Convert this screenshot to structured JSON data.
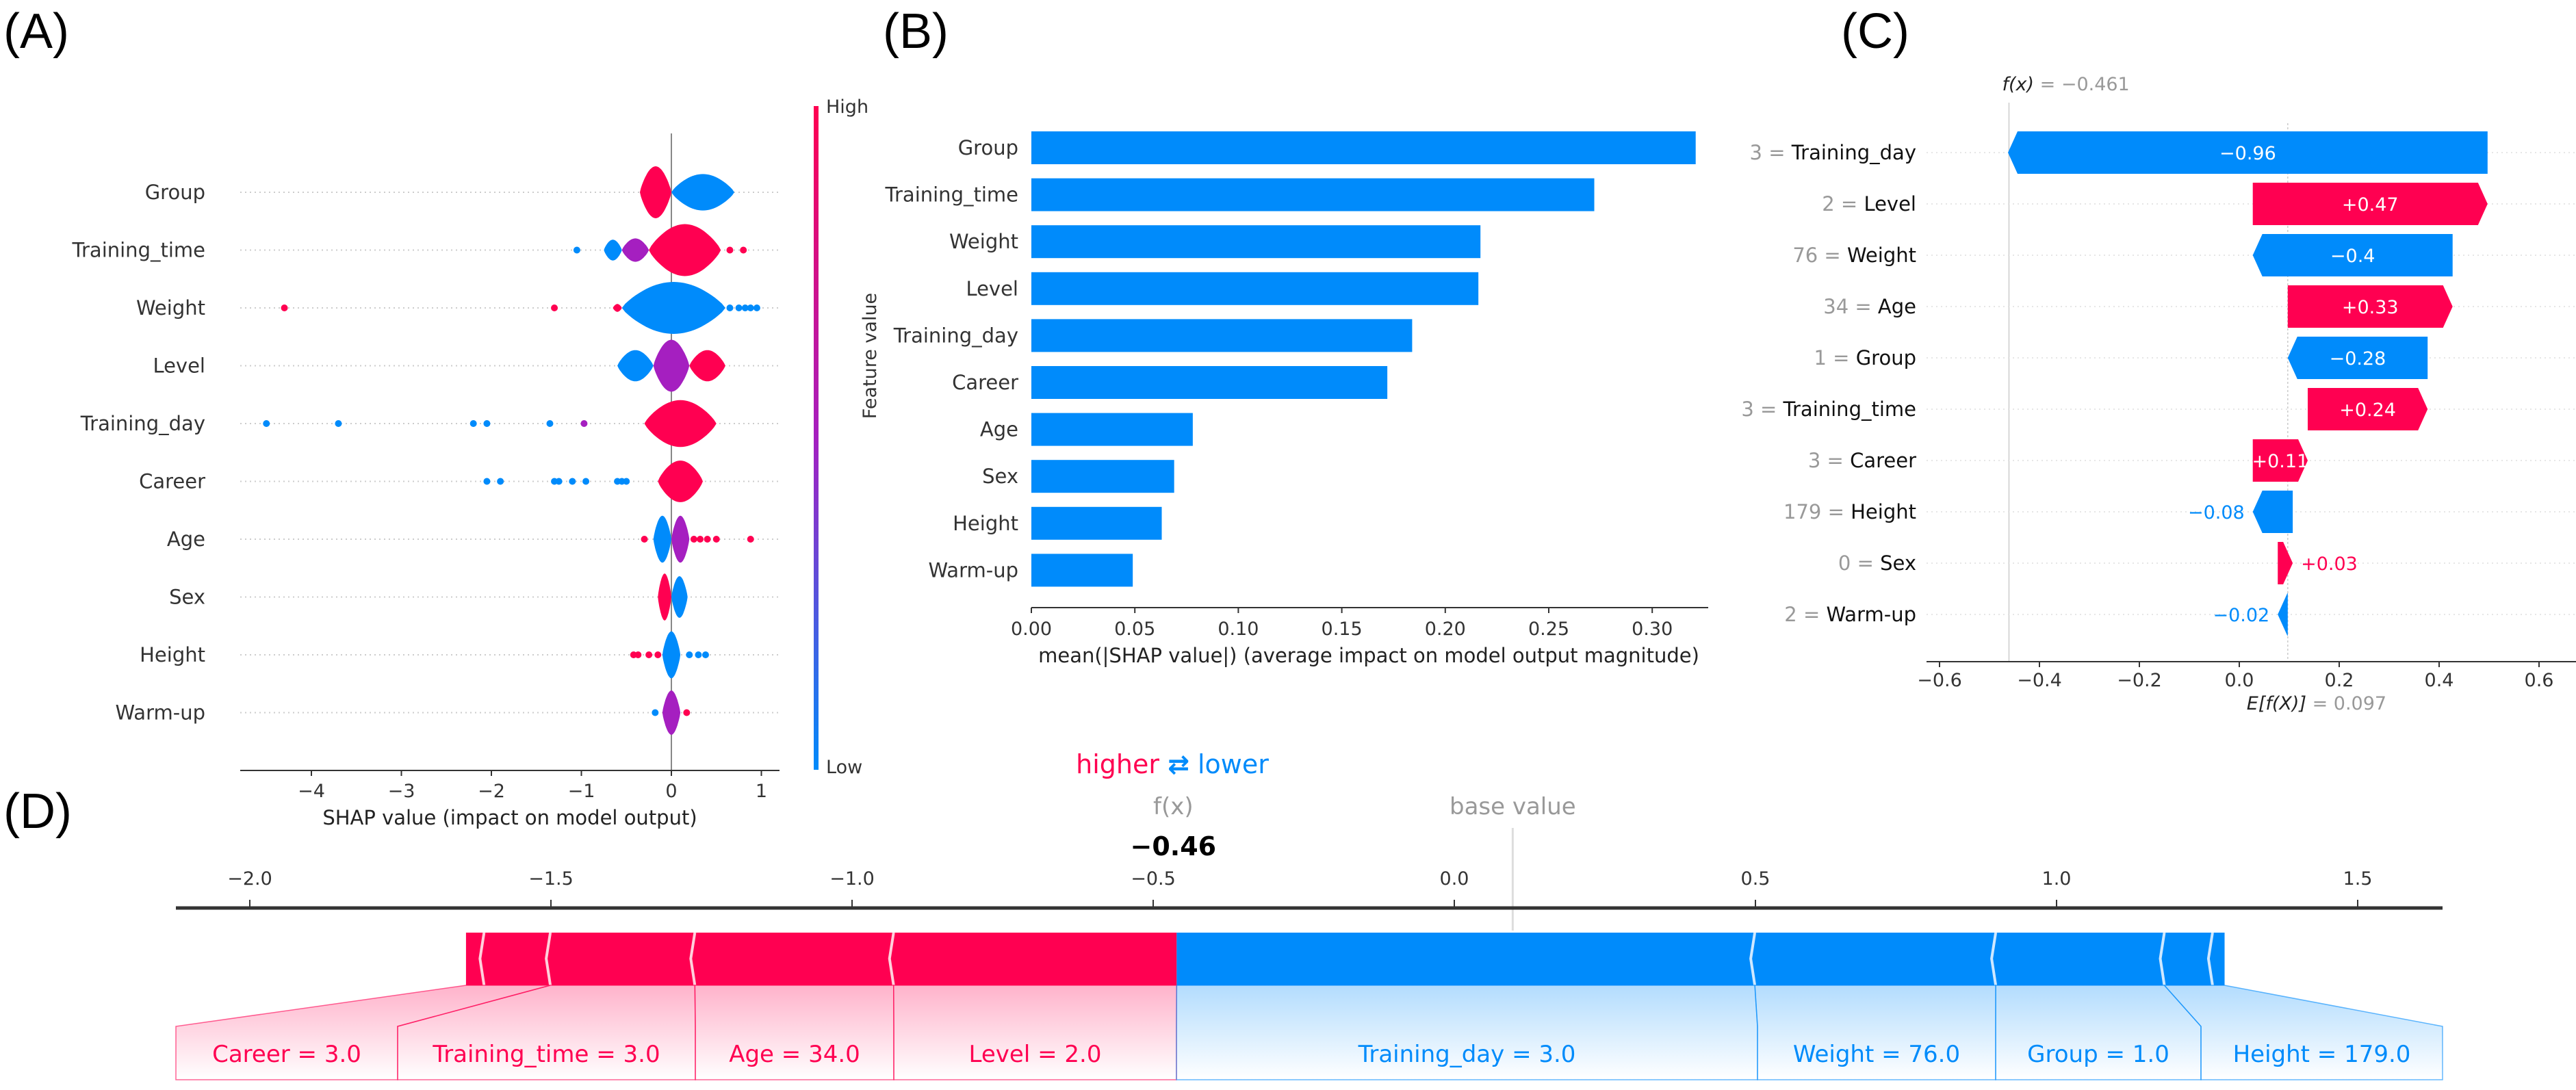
{
  "colors": {
    "positive": "#ff0051",
    "negative": "#008bfb",
    "mid": "#a51fc0",
    "gray": "#999999"
  },
  "panels": {
    "a": "(A)",
    "b": "(B)",
    "c": "(C)",
    "d": "(D)"
  },
  "chart_data": [
    {
      "panel": "(A)",
      "type": "scatter",
      "subtype": "violin summary",
      "xlabel": "SHAP value (impact on model output)",
      "xticks": [
        -4,
        -3,
        -2,
        -1,
        0,
        1
      ],
      "xtick_labels": [
        "−4",
        "−3",
        "−2",
        "−1",
        "0",
        "1"
      ],
      "xlim": [
        -4.8,
        1.2
      ],
      "colorbar": {
        "high": "High",
        "low": "Low"
      },
      "features": [
        {
          "name": "Group",
          "blobs": [
            {
              "from": -0.35,
              "to": 0,
              "peak": 1,
              "color": "positive"
            },
            {
              "from": 0,
              "to": 0.7,
              "peak": 0.7,
              "color": "negative"
            }
          ],
          "dots": []
        },
        {
          "name": "Training_time",
          "blobs": [
            {
              "from": -0.75,
              "to": -0.55,
              "peak": 0.4,
              "color": "negative"
            },
            {
              "from": -0.55,
              "to": -0.25,
              "peak": 0.45,
              "color": "mid"
            },
            {
              "from": -0.25,
              "to": 0.55,
              "peak": 1,
              "color": "positive"
            }
          ],
          "dots": [
            {
              "x": -1.05,
              "color": "negative"
            },
            {
              "x": 0.65,
              "color": "positive"
            },
            {
              "x": 0.8,
              "color": "positive"
            }
          ]
        },
        {
          "name": "Weight",
          "blobs": [
            {
              "from": -0.65,
              "to": -0.55,
              "peak": 0.15,
              "color": "positive"
            },
            {
              "from": -0.55,
              "to": 0.6,
              "peak": 1,
              "color": "negative"
            }
          ],
          "dots": [
            {
              "x": -4.3,
              "color": "positive"
            },
            {
              "x": -1.3,
              "color": "positive"
            },
            {
              "x": 0.65,
              "color": "negative"
            },
            {
              "x": 0.75,
              "color": "negative"
            },
            {
              "x": 0.82,
              "color": "negative"
            },
            {
              "x": 0.88,
              "color": "negative"
            },
            {
              "x": 0.95,
              "color": "negative"
            }
          ]
        },
        {
          "name": "Level",
          "blobs": [
            {
              "from": -0.6,
              "to": -0.2,
              "peak": 0.6,
              "color": "negative"
            },
            {
              "from": -0.2,
              "to": 0.2,
              "peak": 1,
              "color": "mid"
            },
            {
              "from": 0.2,
              "to": 0.6,
              "peak": 0.6,
              "color": "positive"
            }
          ],
          "dots": []
        },
        {
          "name": "Training_day",
          "blobs": [
            {
              "from": -0.3,
              "to": 0.5,
              "peak": 0.9,
              "color": "positive"
            }
          ],
          "dots": [
            {
              "x": -4.5,
              "color": "negative"
            },
            {
              "x": -3.7,
              "color": "negative"
            },
            {
              "x": -2.2,
              "color": "negative"
            },
            {
              "x": -2.05,
              "color": "negative"
            },
            {
              "x": -1.35,
              "color": "negative"
            },
            {
              "x": -0.97,
              "color": "mid"
            }
          ]
        },
        {
          "name": "Career",
          "blobs": [
            {
              "from": -0.15,
              "to": 0.35,
              "peak": 0.8,
              "color": "positive"
            }
          ],
          "dots": [
            {
              "x": -2.05,
              "color": "negative"
            },
            {
              "x": -1.9,
              "color": "negative"
            },
            {
              "x": -1.3,
              "color": "negative"
            },
            {
              "x": -1.25,
              "color": "negative"
            },
            {
              "x": -1.1,
              "color": "negative"
            },
            {
              "x": -0.95,
              "color": "negative"
            },
            {
              "x": -0.6,
              "color": "negative"
            },
            {
              "x": -0.55,
              "color": "negative"
            },
            {
              "x": -0.5,
              "color": "negative"
            }
          ]
        },
        {
          "name": "Age",
          "blobs": [
            {
              "from": -0.2,
              "to": 0,
              "peak": 0.9,
              "color": "negative"
            },
            {
              "from": 0,
              "to": 0.2,
              "peak": 0.9,
              "color": "mid"
            }
          ],
          "dots": [
            {
              "x": -0.3,
              "color": "positive"
            },
            {
              "x": 0.25,
              "color": "positive"
            },
            {
              "x": 0.32,
              "color": "positive"
            },
            {
              "x": 0.4,
              "color": "positive"
            },
            {
              "x": 0.5,
              "color": "positive"
            },
            {
              "x": 0.88,
              "color": "positive"
            }
          ]
        },
        {
          "name": "Sex",
          "blobs": [
            {
              "from": -0.15,
              "to": 0,
              "peak": 0.9,
              "color": "positive"
            },
            {
              "from": 0,
              "to": 0.18,
              "peak": 0.8,
              "color": "negative"
            }
          ],
          "dots": []
        },
        {
          "name": "Height",
          "blobs": [
            {
              "from": -0.1,
              "to": 0.1,
              "peak": 0.9,
              "color": "negative"
            }
          ],
          "dots": [
            {
              "x": -0.42,
              "color": "positive"
            },
            {
              "x": -0.37,
              "color": "positive"
            },
            {
              "x": -0.25,
              "color": "positive"
            },
            {
              "x": -0.15,
              "color": "positive"
            },
            {
              "x": 0.2,
              "color": "negative"
            },
            {
              "x": 0.3,
              "color": "negative"
            },
            {
              "x": 0.38,
              "color": "negative"
            }
          ]
        },
        {
          "name": "Warm-up",
          "blobs": [
            {
              "from": -0.1,
              "to": 0.1,
              "peak": 0.85,
              "color": "mid"
            }
          ],
          "dots": [
            {
              "x": -0.18,
              "color": "negative"
            },
            {
              "x": 0.17,
              "color": "positive"
            }
          ]
        }
      ]
    },
    {
      "panel": "(B)",
      "type": "bar",
      "categories": [
        "Group",
        "Training_time",
        "Weight",
        "Level",
        "Training_day",
        "Career",
        "Age",
        "Sex",
        "Height",
        "Warm-up"
      ],
      "values": [
        0.321,
        0.272,
        0.217,
        0.216,
        0.184,
        0.172,
        0.078,
        0.069,
        0.063,
        0.049
      ],
      "xlabel": "mean(|SHAP value|) (average impact on model output magnitude)",
      "ylabel": "Feature value",
      "xticks": [
        0,
        0.05,
        0.1,
        0.15,
        0.2,
        0.25,
        0.3
      ],
      "xtick_labels": [
        "0.00",
        "0.05",
        "0.10",
        "0.15",
        "0.20",
        "0.25",
        "0.30"
      ],
      "xlim": [
        0,
        0.327
      ]
    },
    {
      "panel": "(C)",
      "type": "bar",
      "subtype": "waterfall",
      "fx": -0.461,
      "fx_label": "f(x)",
      "fx_text": " = −0.461",
      "base": 0.097,
      "base_label": "E[f(X)]",
      "base_text": " = 0.097",
      "features": [
        {
          "value": "3",
          "name": "Training_day",
          "shap": -0.96,
          "text": "−0.96"
        },
        {
          "value": "2",
          "name": "Level",
          "shap": 0.47,
          "text": "+0.47"
        },
        {
          "value": "76",
          "name": "Weight",
          "shap": -0.4,
          "text": "−0.4"
        },
        {
          "value": "34",
          "name": "Age",
          "shap": 0.33,
          "text": "+0.33"
        },
        {
          "value": "1",
          "name": "Group",
          "shap": -0.28,
          "text": "−0.28"
        },
        {
          "value": "3",
          "name": "Training_time",
          "shap": 0.24,
          "text": "+0.24"
        },
        {
          "value": "3",
          "name": "Career",
          "shap": 0.11,
          "text": "+0.11"
        },
        {
          "value": "179",
          "name": "Height",
          "shap": -0.08,
          "text": "−0.08"
        },
        {
          "value": "0",
          "name": "Sex",
          "shap": 0.03,
          "text": "+0.03"
        },
        {
          "value": "2",
          "name": "Warm-up",
          "shap": -0.02,
          "text": "−0.02"
        }
      ],
      "xticks": [
        -0.6,
        -0.4,
        -0.2,
        0,
        0.2,
        0.4,
        0.6
      ],
      "xtick_labels": [
        "−0.6",
        "−0.4",
        "−0.2",
        "0.0",
        "0.2",
        "0.4",
        "0.6"
      ],
      "xlim": [
        -0.62,
        0.67
      ]
    },
    {
      "panel": "(D)",
      "type": "bar",
      "subtype": "force",
      "higher": "higher",
      "arrow": "⇄",
      "lower": "lower",
      "fx_label": "f(x)",
      "fx_text": "−0.46",
      "base_label": "base value",
      "fx": -0.461,
      "base": 0.097,
      "xticks": [
        -2.0,
        -1.5,
        -1.0,
        -0.5,
        0.0,
        0.5,
        1.0,
        1.5
      ],
      "xtick_labels": [
        "−2.0",
        "−1.5",
        "−1.0",
        "−0.5",
        "0.0",
        "0.5",
        "1.0",
        "1.5"
      ],
      "xlim": [
        -2.12,
        1.64
      ],
      "positive": [
        {
          "label": "Level = 2.0",
          "value": 0.47
        },
        {
          "label": "Age = 34.0",
          "value": 0.33
        },
        {
          "label": "Training_time = 3.0",
          "value": 0.24
        },
        {
          "label": "Career = 3.0",
          "value": 0.11
        },
        {
          "label": "",
          "value": 0.03
        }
      ],
      "negative": [
        {
          "label": "Training_day = 3.0",
          "value": 0.96
        },
        {
          "label": "Weight = 76.0",
          "value": 0.4
        },
        {
          "label": "Group = 1.0",
          "value": 0.28
        },
        {
          "label": "Height = 179.0",
          "value": 0.08
        },
        {
          "label": "",
          "value": 0.02
        }
      ]
    }
  ]
}
